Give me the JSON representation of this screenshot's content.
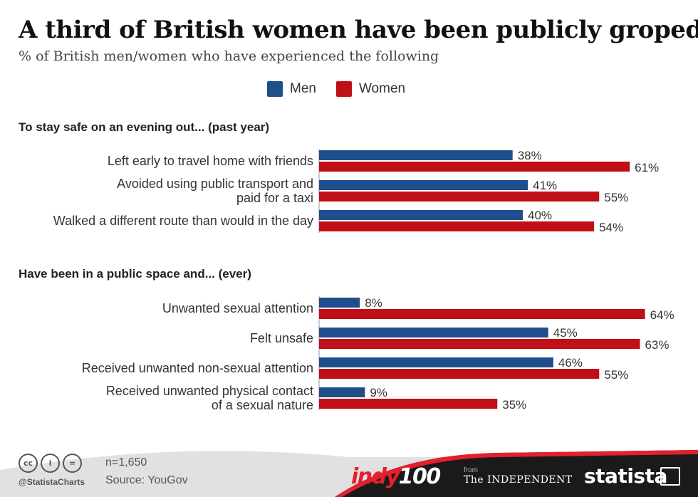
{
  "header": {
    "title": "A third of British women have been publicly groped",
    "subtitle": "% of British men/women who have experienced the following"
  },
  "colors": {
    "men": "#1f4e8c",
    "women": "#c00f16",
    "footer": "#1a1a1a",
    "accent_red": "#e4202c"
  },
  "chart_data": {
    "type": "bar",
    "orientation": "horizontal",
    "legend": [
      {
        "name": "Men",
        "color": "#1f4e8c"
      },
      {
        "name": "Women",
        "color": "#c00f16"
      }
    ],
    "legend_position": "top-center",
    "xlim": [
      0,
      100
    ],
    "grid": false,
    "groups": [
      {
        "heading": "To stay safe on an evening out... (past year)",
        "items": [
          {
            "label": [
              "Left early to travel home with friends"
            ],
            "men": 38,
            "women": 61
          },
          {
            "label": [
              "Avoided using public transport and",
              "paid for a taxi"
            ],
            "men": 41,
            "women": 55
          },
          {
            "label": [
              "Walked a different route than would in the day"
            ],
            "men": 40,
            "women": 54
          }
        ]
      },
      {
        "heading": "Have been in a public space and... (ever)",
        "items": [
          {
            "label": [
              "Unwanted sexual attention"
            ],
            "men": 8,
            "women": 64
          },
          {
            "label": [
              "Felt unsafe"
            ],
            "men": 45,
            "women": 63
          },
          {
            "label": [
              "Received unwanted non-sexual attention"
            ],
            "men": 46,
            "women": 55
          },
          {
            "label": [
              "Received unwanted physical contact",
              "of a sexual nature"
            ],
            "men": 9,
            "women": 35
          }
        ]
      }
    ]
  },
  "footer": {
    "license_icons": [
      "cc",
      "i",
      "="
    ],
    "handle": "@StatistaCharts",
    "n": "n=1,650",
    "source": "Source: YouGov",
    "brand_indy": "indy",
    "brand_indy_num": "100",
    "brand_from": "from",
    "brand_independent": "The INDEPENDENT",
    "brand_statista": "statista"
  }
}
